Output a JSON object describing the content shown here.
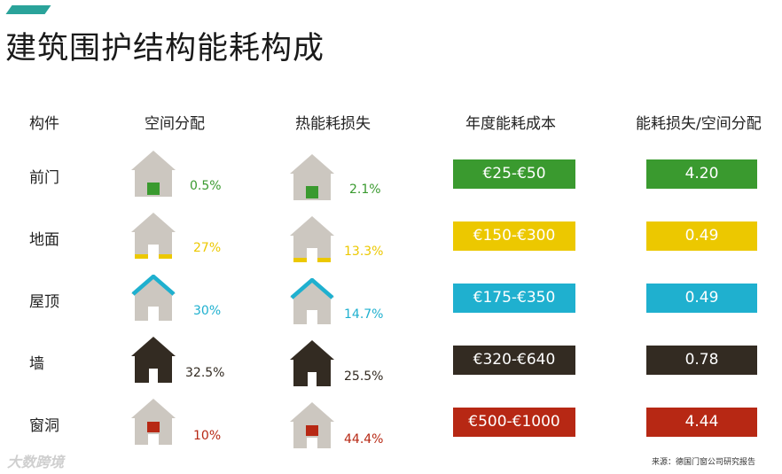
{
  "title": "建筑围护结构能耗构成",
  "headers": [
    "构件",
    "空间分配",
    "热能耗损失",
    "年度能耗成本",
    "能耗损失/空间分配"
  ],
  "colors": {
    "green": "#3a9a2f",
    "yellow": "#ecc800",
    "blue": "#1fb0cf",
    "dark": "#332b22",
    "red": "#b72814",
    "house_gray": "#ccc7c0"
  },
  "rows": [
    {
      "component": "前门",
      "space": "0.5%",
      "heat_loss": "2.1%",
      "cost": "€25-€50",
      "ratio": "4.20",
      "color": "#3a9a2f",
      "highlight": "door"
    },
    {
      "component": "地面",
      "space": "27%",
      "heat_loss": "13.3%",
      "cost": "€150-€300",
      "ratio": "0.49",
      "color": "#ecc800",
      "highlight": "floor"
    },
    {
      "component": "屋顶",
      "space": "30%",
      "heat_loss": "14.7%",
      "cost": "€175-€350",
      "ratio": "0.49",
      "color": "#1fb0cf",
      "highlight": "roof"
    },
    {
      "component": "墙",
      "space": "32.5%",
      "heat_loss": "25.5%",
      "cost": "€320-€640",
      "ratio": "0.78",
      "color": "#332b22",
      "highlight": "wall"
    },
    {
      "component": "窗洞",
      "space": "10%",
      "heat_loss": "44.4%",
      "cost": "€500-€1000",
      "ratio": "4.44",
      "color": "#b72814",
      "highlight": "window"
    }
  ],
  "chart_data": {
    "type": "table",
    "title": "建筑围护结构能耗构成",
    "columns": [
      "构件",
      "空间分配",
      "热能耗损失",
      "年度能耗成本",
      "能耗损失/空间分配"
    ],
    "categories": [
      "前门",
      "地面",
      "屋顶",
      "墙",
      "窗洞"
    ],
    "series": [
      {
        "name": "空间分配",
        "values": [
          0.5,
          27,
          30,
          32.5,
          10
        ]
      },
      {
        "name": "热能耗损失",
        "values": [
          2.1,
          13.3,
          14.7,
          25.5,
          44.4
        ]
      },
      {
        "name": "能耗损失/空间分配",
        "values": [
          4.2,
          0.49,
          0.49,
          0.78,
          4.44
        ]
      }
    ],
    "annual_cost": [
      "€25-€50",
      "€150-€300",
      "€175-€350",
      "€320-€640",
      "€500-€1000"
    ]
  },
  "logo_text": "大数跨境",
  "source": "来源：德国门窗公司研究报告"
}
